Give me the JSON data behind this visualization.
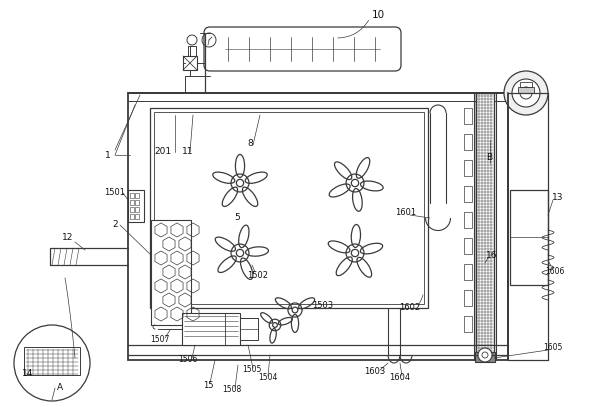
{
  "bg_color": "#ffffff",
  "line_color": "#3a3a3a",
  "lw": 0.9
}
